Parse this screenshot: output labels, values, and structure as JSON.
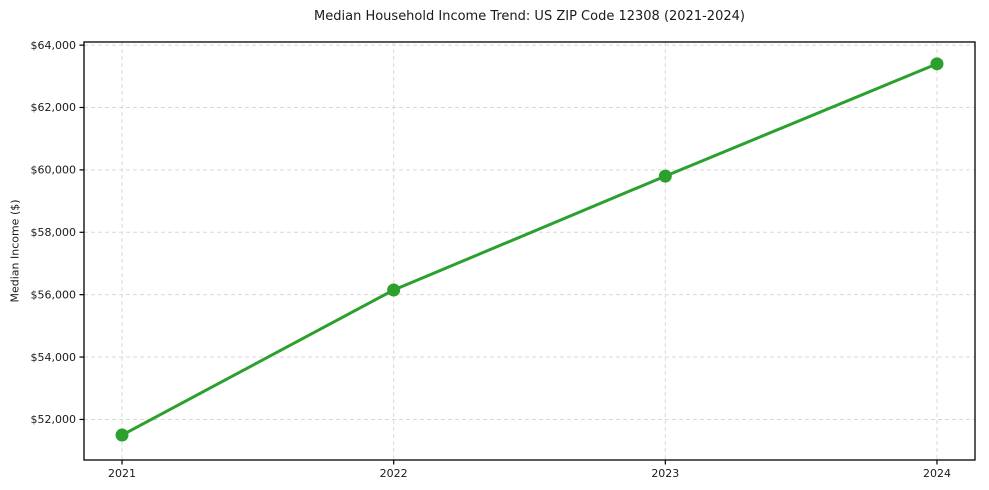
{
  "chart_data": {
    "type": "line",
    "title": "Median Household Income Trend: US ZIP Code 12308 (2021-2024)",
    "xlabel": "",
    "ylabel": "Median Income ($)",
    "x": [
      2021,
      2022,
      2023,
      2024
    ],
    "values": [
      51500,
      56150,
      59800,
      63400
    ],
    "line_color": "#2ca02c",
    "marker": "circle",
    "marker_color": "#2ca02c",
    "xticks": {
      "values": [
        2021,
        2022,
        2023,
        2024
      ],
      "labels": [
        "2021",
        "2022",
        "2023",
        "2024"
      ]
    },
    "yticks": {
      "values": [
        52000,
        54000,
        56000,
        58000,
        60000,
        62000,
        64000
      ],
      "labels": [
        "$52,000",
        "$54,000",
        "$56,000",
        "$58,000",
        "$60,000",
        "$62,000",
        "$64,000"
      ]
    },
    "xlim": [
      2020.86,
      2024.14
    ],
    "ylim": [
      50700,
      64100
    ],
    "grid": {
      "visible": true,
      "style": "dashed",
      "color": "#d9d9d9"
    },
    "legend": {
      "visible": false
    },
    "background": "#ffffff",
    "text_color": "#1a1a1a",
    "spine_color": "#000000"
  }
}
